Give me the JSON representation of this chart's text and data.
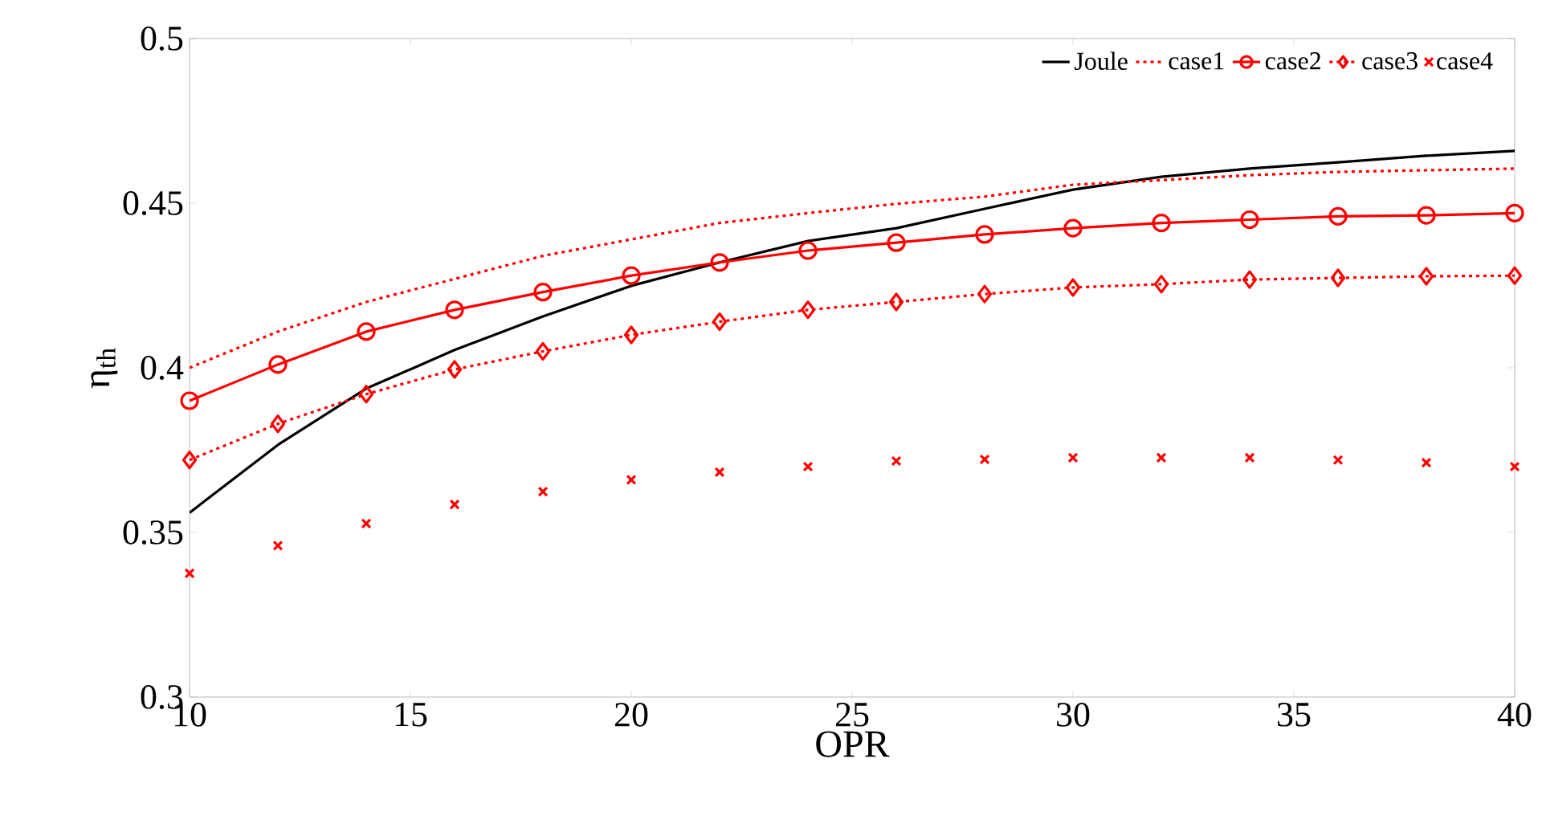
{
  "chart_data": {
    "type": "line",
    "xlabel": "OPR",
    "ylabel": "η$_{th}$",
    "x": [
      10,
      12,
      14,
      16,
      18,
      20,
      22,
      24,
      26,
      28,
      30,
      32,
      34,
      36,
      38,
      40
    ],
    "xlim": [
      10,
      40
    ],
    "xticks": [
      10,
      15,
      20,
      25,
      30,
      35,
      40
    ],
    "ylim": [
      0.3,
      0.5
    ],
    "yticks": [
      0.3,
      0.35,
      0.4,
      0.45,
      0.5
    ],
    "grid": false,
    "legend": "top right",
    "series": [
      {
        "name": "Joule",
        "color": "#000000",
        "line_style": "solid",
        "marker": "none",
        "values": [
          0.356,
          0.3766,
          0.3937,
          0.4054,
          0.4156,
          0.4249,
          0.432,
          0.4385,
          0.4424,
          0.4483,
          0.4541,
          0.458,
          0.4605,
          0.4624,
          0.4644,
          0.4659
        ]
      },
      {
        "name": "case1",
        "color": "#ff0000",
        "line_style": "dotted",
        "marker": "none",
        "values": [
          0.4,
          0.411,
          0.42,
          0.427,
          0.434,
          0.439,
          0.444,
          0.447,
          0.4498,
          0.452,
          0.4556,
          0.457,
          0.4585,
          0.4595,
          0.46,
          0.4605
        ]
      },
      {
        "name": "case2",
        "color": "#ff0000",
        "line_style": "solid",
        "marker": "circle",
        "values": [
          0.39,
          0.401,
          0.411,
          0.4176,
          0.423,
          0.428,
          0.432,
          0.4356,
          0.438,
          0.4405,
          0.4424,
          0.444,
          0.445,
          0.446,
          0.4463,
          0.447
        ]
      },
      {
        "name": "case3",
        "color": "#ff0000",
        "line_style": "dotted",
        "marker": "diamond",
        "values": [
          0.372,
          0.383,
          0.392,
          0.3995,
          0.405,
          0.41,
          0.414,
          0.4176,
          0.42,
          0.4224,
          0.4244,
          0.4254,
          0.4268,
          0.4273,
          0.4278,
          0.428
        ]
      },
      {
        "name": "case4",
        "color": "#ff0000",
        "type": "scatter",
        "marker": "cross",
        "values": [
          0.3376,
          0.346,
          0.3527,
          0.3585,
          0.3624,
          0.366,
          0.3683,
          0.37,
          0.3717,
          0.3722,
          0.3727,
          0.3727,
          0.3727,
          0.372,
          0.3712,
          0.37
        ]
      }
    ]
  }
}
